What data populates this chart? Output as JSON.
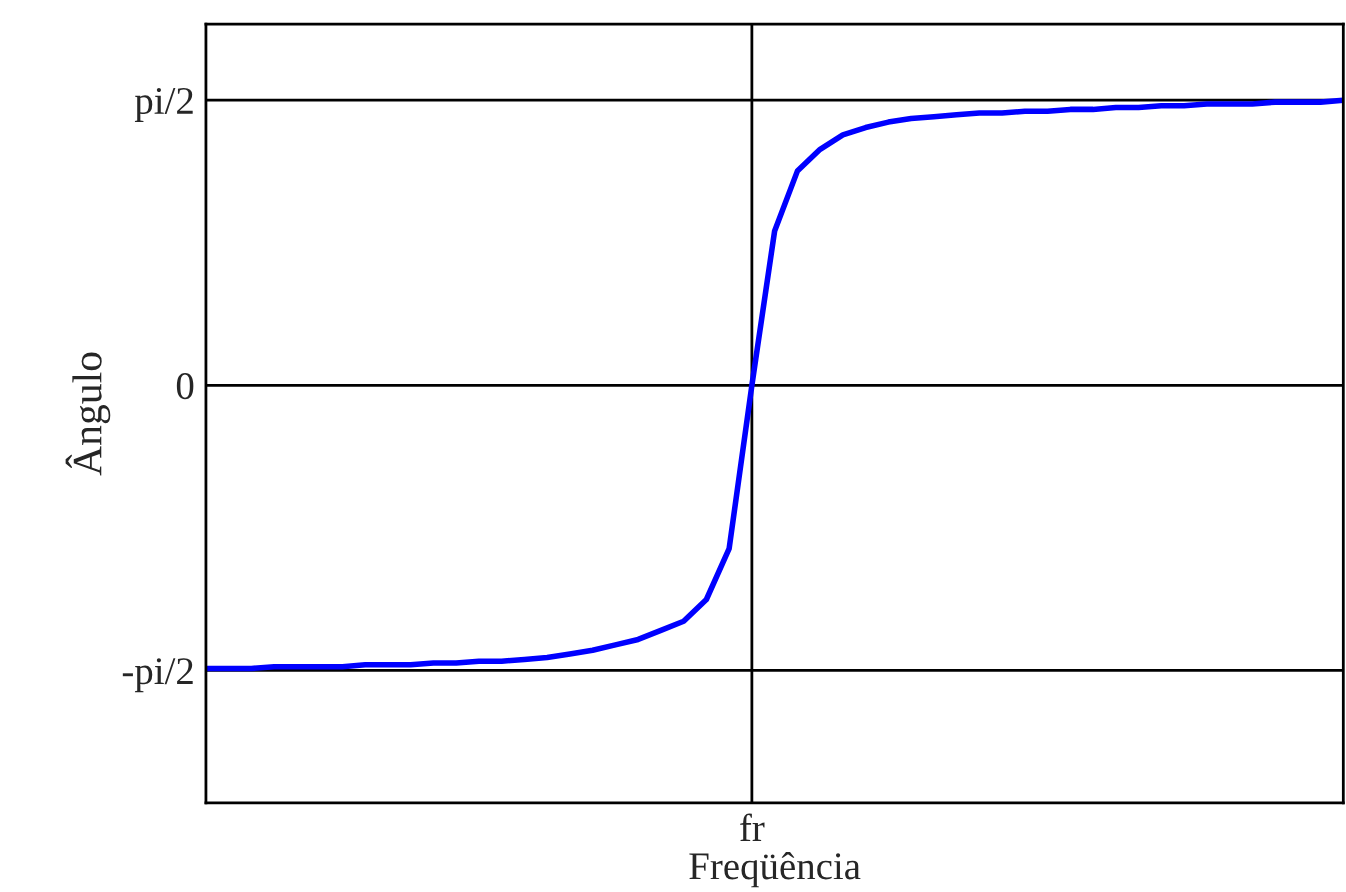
{
  "chart_data": {
    "type": "line",
    "xlabel": "Freqüência",
    "ylabel": "Ângulo",
    "categories": [
      null,
      null,
      null,
      null,
      null,
      null,
      null,
      null,
      null,
      null,
      null,
      null,
      null,
      null,
      null,
      null,
      null,
      null,
      null,
      null,
      null,
      null,
      null,
      null,
      "fr",
      null,
      null,
      null,
      null,
      null,
      null,
      null,
      null,
      null,
      null,
      null,
      null,
      null,
      null,
      null,
      null,
      null,
      null,
      null,
      null,
      null,
      null,
      null,
      null,
      null,
      null
    ],
    "series": [
      {
        "color": "#0000ff",
        "values": [
          -1.56,
          -1.56,
          -1.56,
          -1.55,
          -1.55,
          -1.55,
          -1.55,
          -1.54,
          -1.54,
          -1.54,
          -1.53,
          -1.53,
          -1.52,
          -1.52,
          -1.51,
          -1.5,
          -1.48,
          -1.46,
          -1.43,
          -1.4,
          -1.35,
          -1.3,
          -1.18,
          -0.9,
          0,
          0.85,
          1.18,
          1.3,
          1.38,
          1.42,
          1.45,
          1.47,
          1.48,
          1.49,
          1.5,
          1.5,
          1.51,
          1.51,
          1.52,
          1.52,
          1.53,
          1.53,
          1.54,
          1.54,
          1.55,
          1.55,
          1.55,
          1.56,
          1.56,
          1.56,
          1.57
        ]
      }
    ],
    "ylim": [
      -2.3,
      1.99
    ],
    "yticks": [
      {
        "value": -1.5708,
        "label": "-pi/2"
      },
      0,
      {
        "value": 1.5708,
        "label": "pi/2"
      }
    ],
    "grid": true,
    "line_style": "solid",
    "marker": "none"
  }
}
